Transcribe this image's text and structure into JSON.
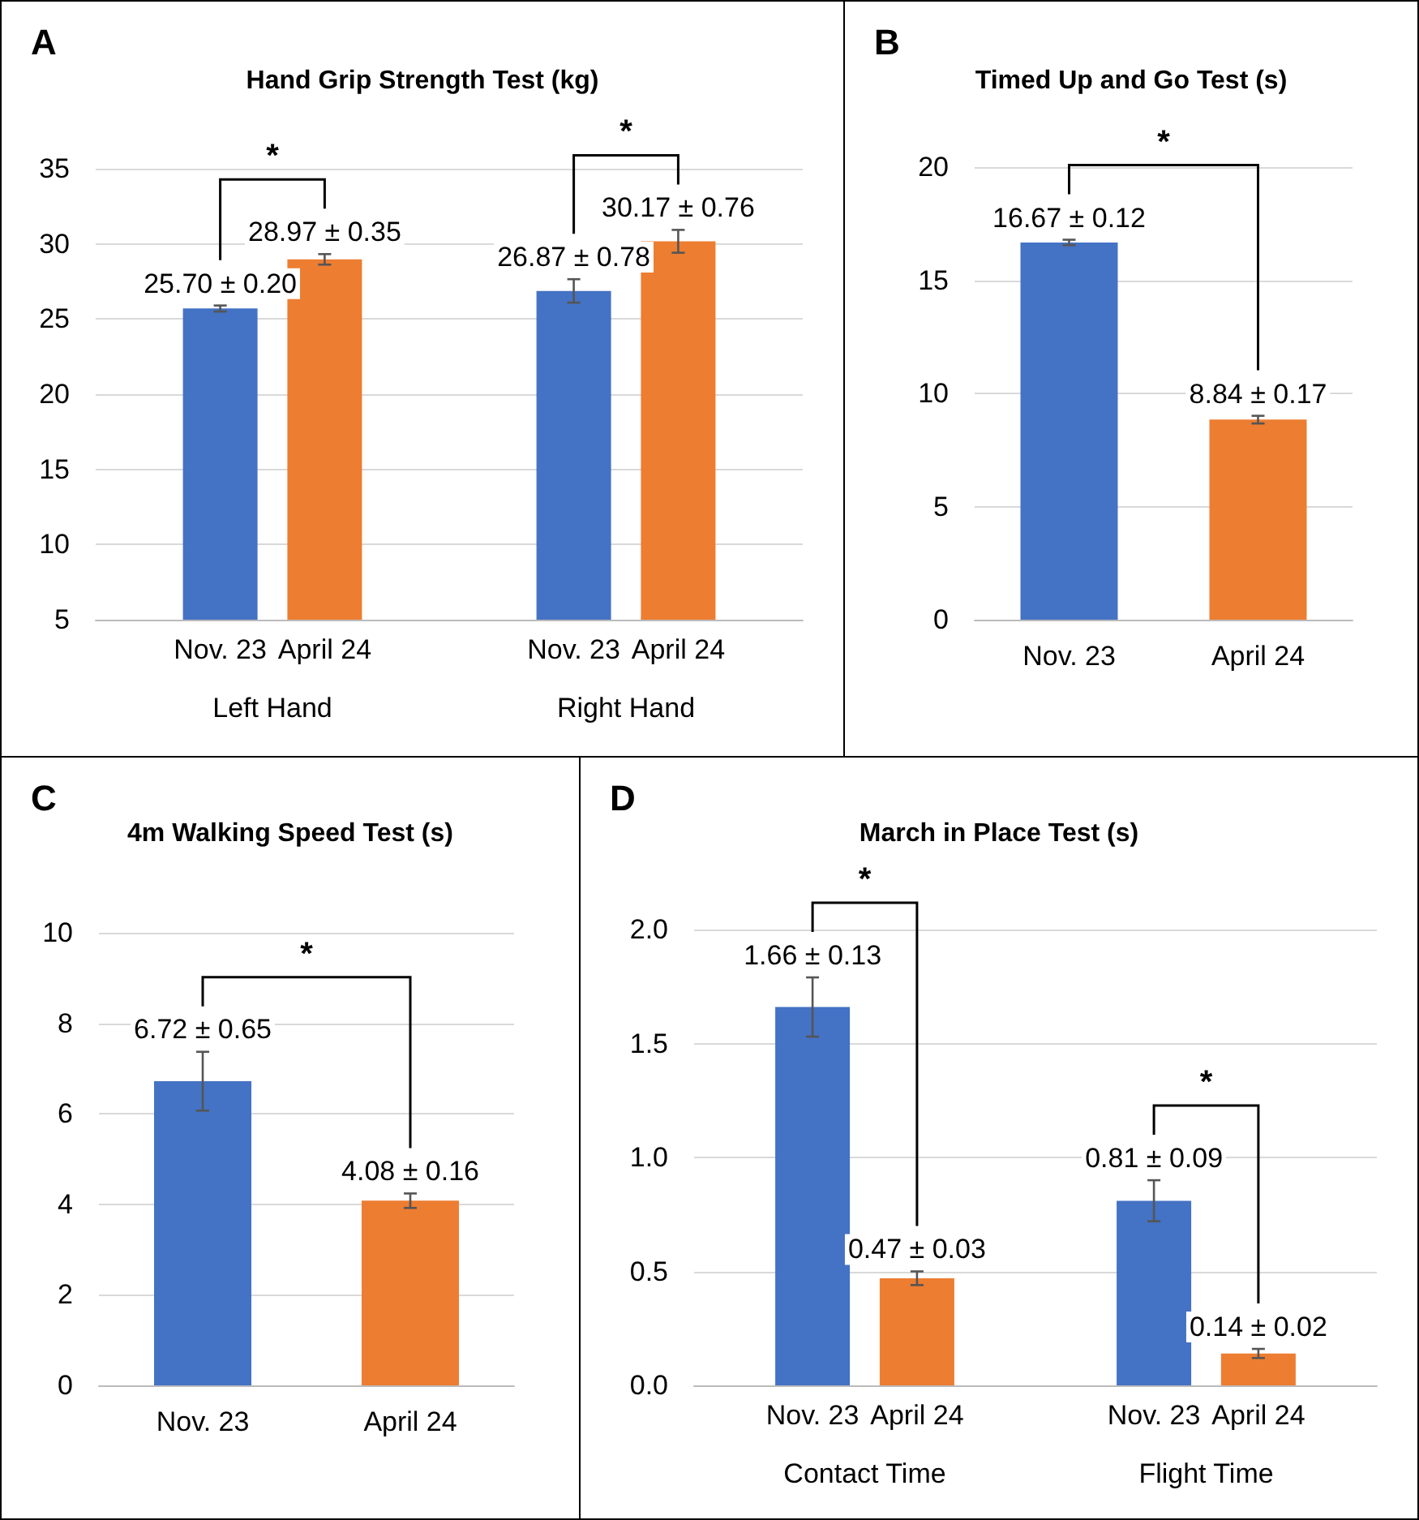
{
  "chart_data": [
    {
      "type": "bar",
      "title": "Hand Grip Strength Test (kg)",
      "annotations": [
        "A",
        "*",
        "*"
      ],
      "categories": [
        "Left Hand",
        "Right Hand"
      ],
      "series": [
        {
          "name": "Nov. 23",
          "color": "#4472c4",
          "values": [
            25.7,
            26.87
          ],
          "errors": [
            0.2,
            0.78
          ],
          "value_labels": [
            "25.70 ± 0.20",
            "26.87 ± 0.78"
          ]
        },
        {
          "name": "April 24",
          "color": "#ed7d31",
          "values": [
            28.97,
            30.17
          ],
          "errors": [
            0.35,
            0.76
          ],
          "value_labels": [
            "28.97 ± 0.35",
            "30.17 ± 0.76"
          ]
        }
      ],
      "ylim": [
        5,
        35
      ],
      "yticks": [
        5,
        10,
        15,
        20,
        25,
        30,
        35
      ],
      "grid": "y"
    },
    {
      "type": "bar",
      "title": "Timed Up and Go Test (s)",
      "annotations": [
        "B",
        "*"
      ],
      "categories": [
        "Nov. 23",
        "April 24"
      ],
      "values": [
        16.67,
        8.84
      ],
      "colors": [
        "#4472c4",
        "#ed7d31"
      ],
      "errors": [
        0.12,
        0.17
      ],
      "value_labels": [
        "16.67 ± 0.12",
        "8.84 ± 0.17"
      ],
      "ylim": [
        0,
        20
      ],
      "yticks": [
        0,
        5,
        10,
        15,
        20
      ],
      "grid": "y"
    },
    {
      "type": "bar",
      "title": "4m Walking Speed Test (s)",
      "annotations": [
        "C",
        "*"
      ],
      "categories": [
        "Nov. 23",
        "April 24"
      ],
      "values": [
        6.72,
        4.08
      ],
      "colors": [
        "#4472c4",
        "#ed7d31"
      ],
      "errors": [
        0.65,
        0.16
      ],
      "value_labels": [
        "6.72 ± 0.65",
        "4.08 ± 0.16"
      ],
      "ylim": [
        0,
        10
      ],
      "yticks": [
        0,
        2,
        4,
        6,
        8,
        10
      ],
      "grid": "y"
    },
    {
      "type": "bar",
      "title": "March in Place Test (s)",
      "annotations": [
        "D",
        "*",
        "*"
      ],
      "categories": [
        "Contact Time",
        "Flight Time"
      ],
      "series": [
        {
          "name": "Nov. 23",
          "color": "#4472c4",
          "values": [
            1.66,
            0.81
          ],
          "errors": [
            0.13,
            0.09
          ],
          "value_labels": [
            "1.66 ± 0.13",
            "0.81 ± 0.09"
          ]
        },
        {
          "name": "April 24",
          "color": "#ed7d31",
          "values": [
            0.47,
            0.14
          ],
          "errors": [
            0.03,
            0.02
          ],
          "value_labels": [
            "0.47 ± 0.03",
            "0.14 ± 0.02"
          ]
        }
      ],
      "ylim": [
        0,
        2.0
      ],
      "yticks": [
        {
          "value": 0,
          "label": "0.0"
        },
        {
          "value": 0.5,
          "label": "0.5"
        },
        {
          "value": 1,
          "label": "1.0"
        },
        {
          "value": 1.5,
          "label": "1.5"
        },
        {
          "value": 2,
          "label": "2.0"
        }
      ],
      "grid": "y"
    }
  ]
}
